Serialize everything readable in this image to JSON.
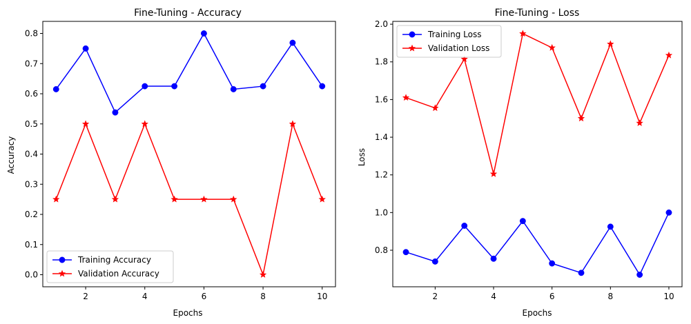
{
  "chart_data": [
    {
      "type": "line",
      "title": "Fine-Tuning - Accuracy",
      "xlabel": "Epochs",
      "ylabel": "Accuracy",
      "xlim": [
        0.55,
        10.45
      ],
      "ylim": [
        -0.04,
        0.84
      ],
      "xticks": [
        2,
        4,
        6,
        8,
        10
      ],
      "yticks": [
        0.0,
        0.1,
        0.2,
        0.3,
        0.4,
        0.5,
        0.6,
        0.7,
        0.8
      ],
      "ytick_decimals": 1,
      "grid": false,
      "legend_position": "lower-left",
      "x": [
        1,
        2,
        3,
        4,
        5,
        6,
        7,
        8,
        9,
        10
      ],
      "series": [
        {
          "name": "Training Accuracy",
          "color": "#0000ff",
          "marker": "circle",
          "values": [
            0.615,
            0.75,
            0.538,
            0.625,
            0.625,
            0.8,
            0.615,
            0.625,
            0.769,
            0.625
          ]
        },
        {
          "name": "Validation Accuracy",
          "color": "#ff0000",
          "marker": "star",
          "values": [
            0.25,
            0.5,
            0.25,
            0.5,
            0.25,
            0.25,
            0.25,
            0.0,
            0.5,
            0.25
          ]
        }
      ]
    },
    {
      "type": "line",
      "title": "Fine-Tuning - Loss",
      "xlabel": "Epochs",
      "ylabel": "Loss",
      "xlim": [
        0.55,
        10.45
      ],
      "ylim": [
        0.606,
        2.015
      ],
      "xticks": [
        2,
        4,
        6,
        8,
        10
      ],
      "yticks": [
        0.8,
        1.0,
        1.2,
        1.4,
        1.6,
        1.8,
        2.0
      ],
      "ytick_decimals": 1,
      "grid": false,
      "legend_position": "upper-left",
      "x": [
        1,
        2,
        3,
        4,
        5,
        6,
        7,
        8,
        9,
        10
      ],
      "series": [
        {
          "name": "Training Loss",
          "color": "#0000ff",
          "marker": "circle",
          "values": [
            0.79,
            0.74,
            0.93,
            0.755,
            0.955,
            0.73,
            0.68,
            0.925,
            0.67,
            1.0
          ]
        },
        {
          "name": "Validation Loss",
          "color": "#ff0000",
          "marker": "star",
          "values": [
            1.61,
            1.555,
            1.815,
            1.205,
            1.95,
            1.875,
            1.5,
            1.895,
            1.475,
            1.835
          ]
        }
      ]
    }
  ]
}
